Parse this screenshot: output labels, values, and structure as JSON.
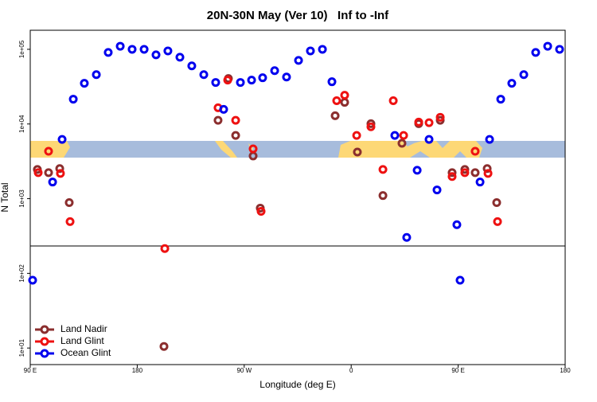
{
  "chart_data": {
    "type": "scatter",
    "title": "20N-30N May (Ver 10)   Inf to -Inf",
    "x_label": "Longitude (deg E)",
    "y_label": "N Total",
    "xlim": [
      90,
      540
    ],
    "xticks": [
      {
        "value": 90,
        "label": "90 E"
      },
      {
        "value": 180,
        "label": "180"
      },
      {
        "value": 270,
        "label": "90 W"
      },
      {
        "value": 360,
        "label": "0"
      },
      {
        "value": 450,
        "label": "90 E"
      },
      {
        "value": 540,
        "label": "180"
      }
    ],
    "ylim": [
      6,
      180000
    ],
    "y_log": true,
    "yticks": [
      {
        "value": 10,
        "label": "1e+01"
      },
      {
        "value": 100,
        "label": "1e+02"
      },
      {
        "value": 1000,
        "label": "1e+03"
      },
      {
        "value": 10000,
        "label": "1e+04"
      },
      {
        "value": 100000,
        "label": "1e+05"
      }
    ],
    "legend": "bottomleft",
    "series": [
      {
        "name": "Land Nadir",
        "color": "#8b2e2e",
        "x": [
          96.0,
          105.4,
          114.8,
          122.8,
          202.5,
          248.0,
          256.7,
          262.8,
          277.5,
          283.5,
          346.5,
          354.5,
          365.2,
          376.6,
          386.7,
          402.7,
          416.8,
          434.9,
          444.9,
          455.6,
          464.3,
          474.4,
          482.4
        ],
        "values": [
          2460,
          2230,
          2530,
          885,
          10.5,
          11200,
          40600,
          7030,
          3730,
          747,
          12900,
          19500,
          4210,
          10100,
          1100,
          5510,
          10100,
          11200,
          2230,
          2460,
          2230,
          2530,
          885
        ]
      },
      {
        "name": "Land Glint",
        "color": "#ee1111",
        "x": [
          96.7,
          105.4,
          115.4,
          123.5,
          203.2,
          248.0,
          256.1,
          262.8,
          277.5,
          284.2,
          347.8,
          354.5,
          364.6,
          376.6,
          386.7,
          395.4,
          404.1,
          416.8,
          425.5,
          434.9,
          444.9,
          455.6,
          464.3,
          475.1,
          483.1
        ],
        "values": [
          2230,
          4310,
          2180,
          493,
          215,
          16500,
          38700,
          11200,
          4640,
          677,
          20500,
          24300,
          7030,
          9180,
          2460,
          20500,
          7030,
          10600,
          10400,
          12300,
          1980,
          2230,
          4310,
          2180,
          493
        ]
      },
      {
        "name": "Ocean Glint",
        "color": "#0000ee",
        "x": [
          92.0,
          108.8,
          116.8,
          126.2,
          135.5,
          145.6,
          155.6,
          165.7,
          175.7,
          185.8,
          195.8,
          205.8,
          215.9,
          225.9,
          236.0,
          246.0,
          252.7,
          266.8,
          276.2,
          285.5,
          295.6,
          305.6,
          315.7,
          325.7,
          335.8,
          343.8,
          396.7,
          406.7,
          415.5,
          425.5,
          432.2,
          448.9,
          451.6,
          468.4,
          476.4,
          485.8,
          495.1,
          505.2,
          515.2,
          525.3,
          535.3
        ],
        "values": [
          81,
          1670,
          6220,
          21500,
          35100,
          45800,
          90800,
          110000,
          100000,
          100000,
          84300,
          95200,
          78400,
          60000,
          45800,
          36000,
          15700,
          36000,
          38700,
          41600,
          51800,
          42600,
          71100,
          95200,
          100000,
          36800,
          7030,
          303,
          2400,
          6220,
          1310,
          448,
          81,
          1670,
          6220,
          21500,
          35100,
          45800,
          90800,
          110000,
          100000
        ]
      }
    ]
  }
}
